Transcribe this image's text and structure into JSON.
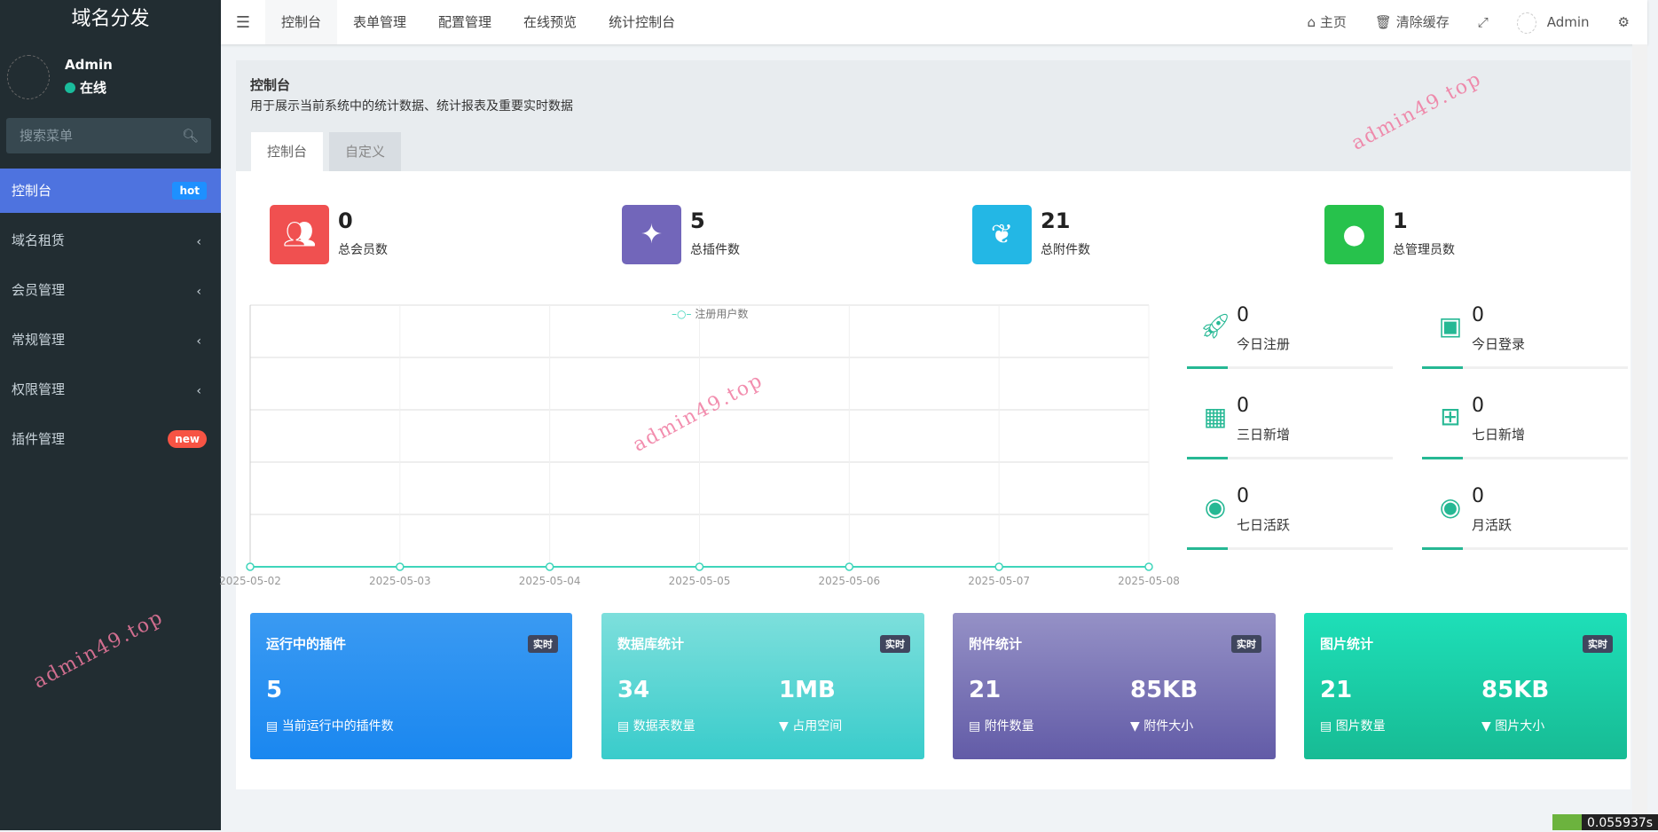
{
  "sidebar": {
    "logo": "域名分发",
    "user_name": "Admin",
    "user_status": "在线",
    "search_placeholder": "搜索菜单",
    "items": [
      {
        "label": "控制台",
        "badge": "hot",
        "badge_color": "#1e90ff"
      },
      {
        "label": "域名租赁"
      },
      {
        "label": "会员管理"
      },
      {
        "label": "常规管理"
      },
      {
        "label": "权限管理"
      },
      {
        "label": "插件管理",
        "badge": "new",
        "badge_color": "#f75444"
      }
    ]
  },
  "topbar": {
    "tabs": [
      "控制台",
      "表单管理",
      "配置管理",
      "在线预览",
      "统计控制台"
    ],
    "home": "主页",
    "clear_cache": "清除缓存",
    "user": "Admin"
  },
  "panel": {
    "title": "控制台",
    "description": "用于展示当前系统中的统计数据、统计报表及重要实时数据",
    "tabs": [
      "控制台",
      "自定义"
    ]
  },
  "stats": [
    {
      "value": "0",
      "label": "总会员数",
      "color": "#f05050",
      "icon": "users-icon"
    },
    {
      "value": "5",
      "label": "总插件数",
      "color": "#7266ba",
      "icon": "magic-wand-icon"
    },
    {
      "value": "21",
      "label": "总附件数",
      "color": "#23b7e5",
      "icon": "leaf-icon"
    },
    {
      "value": "1",
      "label": "总管理员数",
      "color": "#27c24c",
      "icon": "user-icon"
    }
  ],
  "chart_data": {
    "type": "line",
    "legend": "注册用户数",
    "categories": [
      "2025-05-02",
      "2025-05-03",
      "2025-05-04",
      "2025-05-05",
      "2025-05-06",
      "2025-05-07",
      "2025-05-08"
    ],
    "series": [
      {
        "name": "注册用户数",
        "values": [
          0,
          0,
          0,
          0,
          0,
          0,
          0
        ],
        "color": "#3fd5bb"
      }
    ],
    "grid": true,
    "legend_position": "top-center"
  },
  "mini_stats": [
    {
      "value": "0",
      "label": "今日注册",
      "icon": "rocket-icon"
    },
    {
      "value": "0",
      "label": "今日登录",
      "icon": "id-card-icon"
    },
    {
      "value": "0",
      "label": "三日新增",
      "icon": "calendar-icon"
    },
    {
      "value": "0",
      "label": "七日新增",
      "icon": "calendar-plus-icon"
    },
    {
      "value": "0",
      "label": "七日活跃",
      "icon": "user-circle-icon"
    },
    {
      "value": "0",
      "label": "月活跃",
      "icon": "user-circle-icon"
    }
  ],
  "cards": [
    {
      "title": "运行中的插件",
      "tag": "实时",
      "v1": "5",
      "l1": "当前运行中的插件数",
      "gradient": [
        "#3a9af2",
        "#1a87f0"
      ]
    },
    {
      "title": "数据库统计",
      "tag": "实时",
      "v1": "34",
      "l1": "数据表数量",
      "v2": "1MB",
      "l2": "占用空间",
      "gradient": [
        "#7ddfdc",
        "#39cccb"
      ]
    },
    {
      "title": "附件统计",
      "tag": "实时",
      "v1": "21",
      "l1": "附件数量",
      "v2": "85KB",
      "l2": "附件大小",
      "gradient": [
        "#9591c6",
        "#625ba7"
      ]
    },
    {
      "title": "图片统计",
      "tag": "实时",
      "v1": "21",
      "l1": "图片数量",
      "v2": "85KB",
      "l2": "图片大小",
      "gradient": [
        "#1edfb8",
        "#17bb94"
      ]
    }
  ],
  "watermark": "admin49.top",
  "perf_text": "0.055937s"
}
